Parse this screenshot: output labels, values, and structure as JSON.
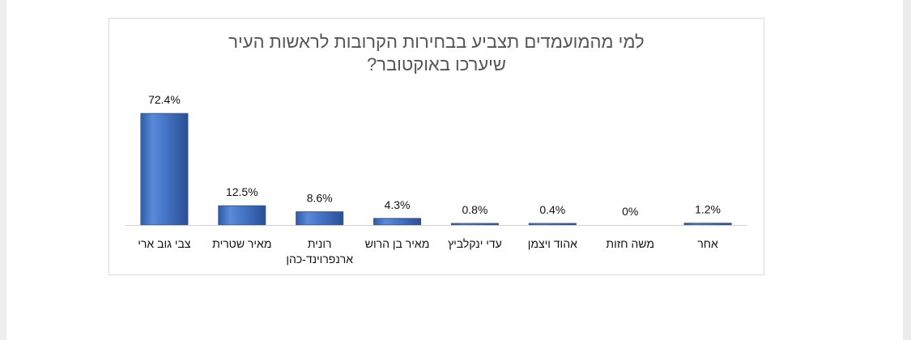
{
  "chart_data": {
    "type": "bar",
    "title_lines": [
      "למי מהמועמדים תצביע בבחירות הקרובות לראשות העיר",
      "שיערכו באוקטובר?"
    ],
    "categories": [
      [
        "צבי גוב ארי"
      ],
      [
        "מאיר שטרית"
      ],
      [
        "רונית",
        "ארנפרוינד-כהן"
      ],
      [
        "מאיר בן הרוש"
      ],
      [
        "עדי ינקלביץ"
      ],
      [
        "אהוד ויצמן"
      ],
      [
        "משה חזות"
      ],
      [
        "אחר"
      ]
    ],
    "values": [
      72.4,
      12.5,
      8.6,
      4.3,
      0.8,
      0.4,
      0,
      1.2
    ],
    "data_labels": [
      "72.4%",
      "12.5%",
      "8.6%",
      "4.3%",
      "0.8%",
      "0.4%",
      "0%",
      "1.2%"
    ],
    "ylim": [
      0,
      80
    ],
    "grid": false,
    "legend": "none",
    "bar_color": "#4472c4",
    "bar_edge_color": "#2f5597"
  }
}
